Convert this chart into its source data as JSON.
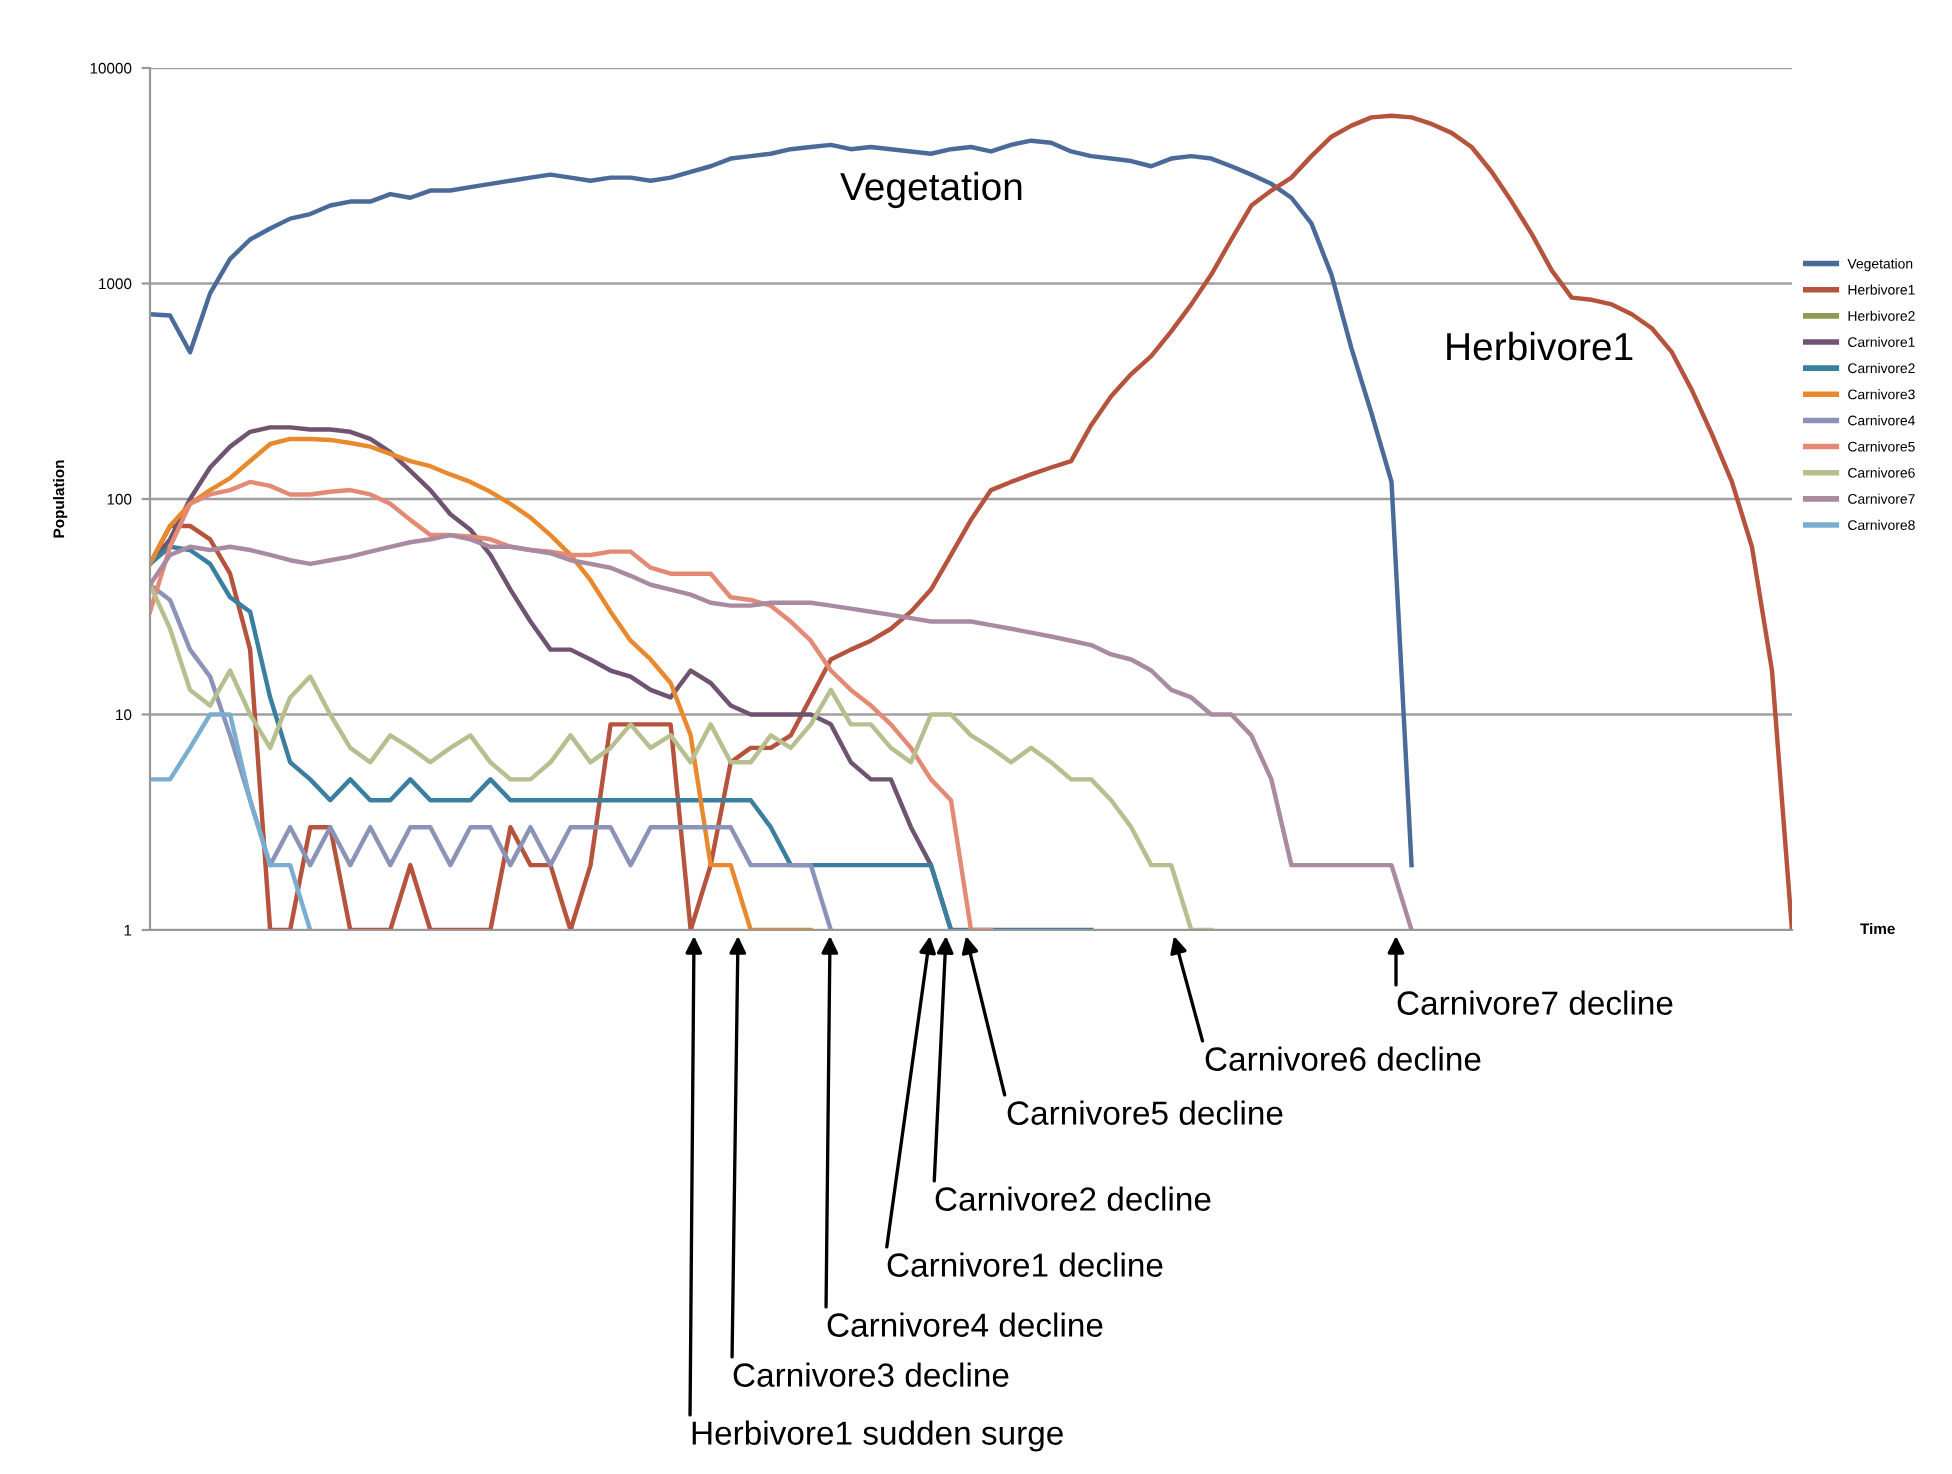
{
  "chart_data": {
    "type": "line",
    "ylabel": "Population",
    "xlabel": "Time",
    "log": true,
    "grid": "y",
    "legend": "right",
    "ylim": [
      1,
      10000
    ],
    "yticks": [
      1,
      10,
      100,
      1000,
      10000
    ],
    "categories": [
      null,
      null,
      null,
      null,
      null,
      null,
      null,
      null,
      null,
      null,
      null,
      null,
      null,
      null,
      null,
      null,
      null,
      null,
      null,
      null,
      null,
      null,
      null,
      null,
      null,
      null,
      null,
      null,
      null,
      null,
      null,
      null,
      null,
      null,
      null,
      null,
      null,
      null,
      null,
      null,
      null,
      null,
      null,
      null,
      null,
      null,
      null,
      null,
      null,
      null,
      null,
      null,
      null,
      null,
      null,
      null,
      null,
      null,
      null,
      null,
      null,
      null,
      null,
      null,
      null,
      null,
      null,
      null,
      null,
      null,
      null,
      null,
      null,
      null,
      null,
      null,
      null,
      null,
      null,
      null,
      null,
      null,
      null
    ],
    "series": [
      {
        "name": "Vegetation",
        "color": "#4a6a9a",
        "values": [
          720,
          710,
          480,
          900,
          1300,
          1600,
          1800,
          2000,
          2100,
          2300,
          2400,
          2400,
          2600,
          2500,
          2700,
          2700,
          2800,
          2900,
          3000,
          3100,
          3200,
          3100,
          3000,
          3100,
          3100,
          3000,
          3100,
          3300,
          3500,
          3800,
          3900,
          4000,
          4200,
          4300,
          4400,
          4200,
          4300,
          4200,
          4100,
          4000,
          4200,
          4300,
          4100,
          4400,
          4600,
          4500,
          4100,
          3900,
          3800,
          3700,
          3500,
          3800,
          3900,
          3800,
          3500,
          3200,
          2900,
          2500,
          1900,
          1100,
          500,
          250,
          120,
          2,
          null,
          null,
          null,
          null,
          null,
          null,
          null,
          null,
          null,
          null,
          null,
          null,
          null,
          null,
          null,
          null,
          null,
          null,
          null
        ]
      },
      {
        "name": "Herbivore1",
        "color": "#b5533c",
        "values": [
          50,
          75,
          75,
          65,
          45,
          20,
          1,
          1,
          3,
          3,
          1,
          1,
          1,
          2,
          1,
          1,
          1,
          1,
          3,
          2,
          2,
          1,
          2,
          9,
          9,
          9,
          9,
          1,
          2,
          6,
          7,
          7,
          8,
          12,
          18,
          20,
          22,
          25,
          30,
          38,
          55,
          80,
          110,
          120,
          130,
          140,
          150,
          220,
          300,
          380,
          460,
          600,
          800,
          1100,
          1600,
          2300,
          2700,
          3100,
          3900,
          4800,
          5400,
          5900,
          6000,
          5900,
          5500,
          5000,
          4300,
          3300,
          2400,
          1700,
          1150,
          860,
          840,
          800,
          720,
          620,
          480,
          320,
          200,
          120,
          60,
          16,
          1
        ]
      },
      {
        "name": "Herbivore2",
        "color": "#8f9a52",
        "values": [
          null,
          null,
          null,
          null,
          null,
          null,
          null,
          null,
          null,
          null,
          null,
          null,
          null,
          null,
          null,
          null,
          null,
          null,
          null,
          null,
          null,
          null,
          null,
          null,
          null,
          null,
          null,
          null,
          null,
          null,
          null,
          null,
          null,
          null,
          null,
          null,
          null,
          null,
          null,
          null,
          null,
          null,
          null,
          null,
          null,
          null,
          null,
          null,
          null,
          null,
          null,
          null,
          null,
          null,
          null,
          null,
          null,
          null,
          null,
          null,
          null,
          null,
          null,
          null,
          null,
          null,
          null,
          null,
          null,
          null,
          null,
          null,
          null,
          null,
          null,
          null,
          null,
          null,
          null,
          null,
          null,
          null,
          null
        ]
      },
      {
        "name": "Carnivore1",
        "color": "#6e5470",
        "values": [
          50,
          65,
          100,
          140,
          175,
          205,
          215,
          215,
          210,
          210,
          205,
          190,
          165,
          135,
          110,
          85,
          72,
          55,
          38,
          27,
          20,
          20,
          18,
          16,
          15,
          13,
          12,
          16,
          14,
          11,
          10,
          10,
          10,
          10,
          9,
          6,
          5,
          5,
          3,
          2,
          1,
          null,
          null,
          null,
          null,
          null,
          null,
          null,
          null,
          null,
          null,
          null,
          null,
          null,
          null,
          null,
          null,
          null,
          null,
          null,
          null,
          null,
          null,
          null,
          null,
          null,
          null,
          null,
          null,
          null,
          null,
          null,
          null,
          null,
          null,
          null,
          null,
          null,
          null,
          null,
          null,
          null,
          null
        ]
      },
      {
        "name": "Carnivore2",
        "color": "#3a7ea0",
        "values": [
          50,
          60,
          58,
          50,
          35,
          30,
          12,
          6,
          5,
          4,
          5,
          4,
          4,
          5,
          4,
          4,
          4,
          5,
          4,
          4,
          4,
          4,
          4,
          4,
          4,
          4,
          4,
          4,
          4,
          4,
          4,
          3,
          2,
          2,
          2,
          2,
          2,
          2,
          2,
          2,
          1,
          1,
          1,
          1,
          1,
          1,
          1,
          1,
          null,
          null,
          null,
          null,
          null,
          null,
          null,
          null,
          null,
          null,
          null,
          null,
          null,
          null,
          null,
          null,
          null,
          null,
          null,
          null,
          null,
          null,
          null,
          null,
          null,
          null,
          null,
          null,
          null,
          null,
          null,
          null,
          null,
          null,
          null
        ]
      },
      {
        "name": "Carnivore3",
        "color": "#e8892e",
        "values": [
          50,
          75,
          95,
          110,
          125,
          150,
          180,
          190,
          190,
          188,
          182,
          175,
          162,
          150,
          142,
          130,
          120,
          108,
          95,
          82,
          68,
          55,
          42,
          30,
          22,
          18,
          14,
          8,
          2,
          2,
          1,
          1,
          1,
          1,
          null,
          null,
          null,
          null,
          null,
          null,
          null,
          null,
          null,
          null,
          null,
          null,
          null,
          null,
          null,
          null,
          null,
          null,
          null,
          null,
          null,
          null,
          null,
          null,
          null,
          null,
          null,
          null,
          null,
          null,
          null,
          null,
          null,
          null,
          null,
          null,
          null,
          null,
          null,
          null,
          null,
          null,
          null,
          null,
          null,
          null,
          null,
          null,
          null
        ]
      },
      {
        "name": "Carnivore4",
        "color": "#8b93b8",
        "values": [
          40,
          34,
          20,
          15,
          8,
          4,
          2,
          3,
          2,
          3,
          2,
          3,
          2,
          3,
          3,
          2,
          3,
          3,
          2,
          3,
          2,
          3,
          3,
          3,
          2,
          3,
          3,
          3,
          3,
          3,
          2,
          2,
          2,
          2,
          1,
          null,
          null,
          null,
          null,
          null,
          null,
          null,
          null,
          null,
          null,
          null,
          null,
          null,
          null,
          null,
          null,
          null,
          null,
          null,
          null,
          null,
          null,
          null,
          null,
          null,
          null,
          null,
          null,
          null,
          null,
          null,
          null,
          null,
          null,
          null,
          null,
          null,
          null,
          null,
          null,
          null,
          null,
          null,
          null,
          null,
          null,
          null,
          null
        ]
      },
      {
        "name": "Carnivore5",
        "color": "#e38a74",
        "values": [
          30,
          60,
          95,
          105,
          110,
          120,
          115,
          105,
          105,
          108,
          110,
          105,
          95,
          80,
          68,
          68,
          67,
          65,
          60,
          58,
          57,
          55,
          55,
          57,
          57,
          48,
          45,
          45,
          45,
          35,
          34,
          32,
          27,
          22,
          16,
          13,
          11,
          9,
          7,
          5,
          4,
          1,
          1,
          null,
          null,
          null,
          null,
          null,
          null,
          null,
          null,
          null,
          null,
          null,
          null,
          null,
          null,
          null,
          null,
          null,
          null,
          null,
          null,
          null,
          null,
          null,
          null,
          null,
          null,
          null,
          null,
          null,
          null,
          null,
          null,
          null,
          null,
          null,
          null,
          null,
          null,
          null,
          null
        ]
      },
      {
        "name": "Carnivore6",
        "color": "#b8bf8e",
        "values": [
          40,
          25,
          13,
          11,
          16,
          10,
          7,
          12,
          15,
          10,
          7,
          6,
          8,
          7,
          6,
          7,
          8,
          6,
          5,
          5,
          6,
          8,
          6,
          7,
          9,
          7,
          8,
          6,
          9,
          6,
          6,
          8,
          7,
          9,
          13,
          9,
          9,
          7,
          6,
          10,
          10,
          8,
          7,
          6,
          7,
          6,
          5,
          5,
          4,
          3,
          2,
          2,
          1,
          1,
          null,
          null,
          null,
          null,
          null,
          null,
          null,
          null,
          null,
          null,
          null,
          null,
          null,
          null,
          null,
          null,
          null,
          null,
          null,
          null,
          null,
          null,
          null,
          null,
          null,
          null,
          null,
          null,
          null
        ]
      },
      {
        "name": "Carnivore7",
        "color": "#a98aa0",
        "values": [
          40,
          55,
          60,
          58,
          60,
          58,
          55,
          52,
          50,
          52,
          54,
          57,
          60,
          63,
          65,
          68,
          65,
          60,
          60,
          58,
          56,
          52,
          50,
          48,
          44,
          40,
          38,
          36,
          33,
          32,
          32,
          33,
          33,
          33,
          32,
          31,
          30,
          29,
          28,
          27,
          27,
          27,
          26,
          25,
          24,
          23,
          22,
          21,
          19,
          18,
          16,
          13,
          12,
          10,
          10,
          8,
          5,
          2,
          2,
          2,
          2,
          2,
          2,
          1,
          null,
          null,
          null,
          null,
          null,
          null,
          null,
          null,
          null,
          null,
          null,
          null,
          null,
          null,
          null,
          null,
          null,
          null,
          null
        ]
      },
      {
        "name": "Carnivore8",
        "color": "#7aaed0",
        "values": [
          5,
          5,
          7,
          10,
          10,
          4,
          2,
          2,
          1,
          null,
          null,
          null,
          null,
          null,
          null,
          null,
          null,
          null,
          null,
          null,
          null,
          null,
          null,
          null,
          null,
          null,
          null,
          null,
          null,
          null,
          null,
          null,
          null,
          null,
          null,
          null,
          null,
          null,
          null,
          null,
          null,
          null,
          null,
          null,
          null,
          null,
          null,
          null,
          null,
          null,
          null,
          null,
          null,
          null,
          null,
          null,
          null,
          null,
          null,
          null,
          null,
          null,
          null,
          null,
          null,
          null,
          null,
          null,
          null,
          null,
          null,
          null,
          null,
          null,
          null,
          null,
          null,
          null,
          null,
          null,
          null,
          null,
          null
        ]
      }
    ],
    "annotations": [
      "Vegetation",
      "Herbivore1",
      "Herbivore1 sudden surge",
      "Carnivore3 decline",
      "Carnivore4 decline",
      "Carnivore1 decline",
      "Carnivore2 decline",
      "Carnivore5 decline",
      "Carnivore6 decline",
      "Carnivore7 decline"
    ]
  }
}
